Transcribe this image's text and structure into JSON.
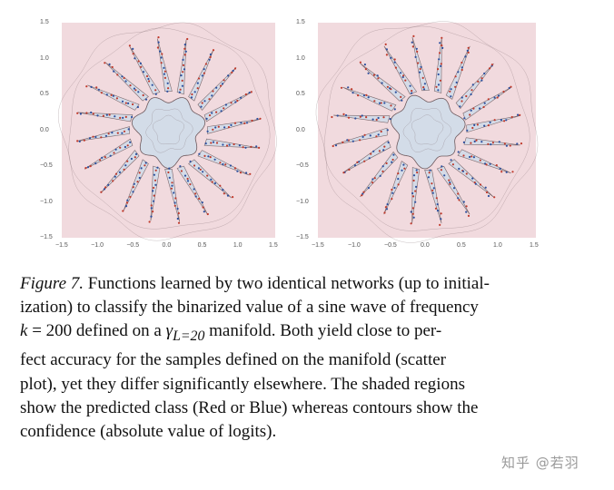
{
  "figure": {
    "panels": [
      {
        "id": "left",
        "xlim": [
          -1.5,
          1.5
        ],
        "ylim": [
          -1.5,
          1.5
        ],
        "xticks": [
          "−1.5",
          "−1.0",
          "−0.5",
          "0.0",
          "0.5",
          "1.0",
          "1.5"
        ],
        "yticks": [
          "1.5",
          "1.0",
          "0.5",
          "0.0",
          "−0.5",
          "−1.0",
          "−1.5"
        ]
      },
      {
        "id": "right",
        "xlim": [
          -1.5,
          1.5
        ],
        "ylim": [
          -1.5,
          1.5
        ],
        "xticks": [
          "−1.5",
          "−1.0",
          "−0.5",
          "0.0",
          "0.5",
          "1.0",
          "1.5"
        ],
        "yticks": [
          "1.5",
          "1.0",
          "0.5",
          "0.0",
          "−0.5",
          "−1.0",
          "−1.5"
        ]
      }
    ],
    "colors": {
      "red_region": "#f1dade",
      "blue_region": "#d3dce8",
      "contour": "#6e5a5e",
      "red_points": "#c0392b",
      "blue_points": "#2c4f9e"
    }
  },
  "caption": {
    "lead": "Figure 7.",
    "line1_rest": " Functions learned by two identical networks (up to initial-",
    "line2": "ization) to classify the binarized value of a sine wave of frequency",
    "line3_k": "k",
    "line3_eq": " = 200 defined on a ",
    "line3_gamma": "γ",
    "line3_sub": "L=20",
    "line3_rest": " manifold.  Both yield close to per-",
    "line4": "fect accuracy for the samples defined on the manifold (scatter",
    "line5": "plot), yet they differ significantly elsewhere. The shaded regions",
    "line6": "show the predicted class (Red or Blue) whereas contours show the",
    "line7": "confidence (absolute value of logits)."
  },
  "watermark": "知乎 @若羽"
}
